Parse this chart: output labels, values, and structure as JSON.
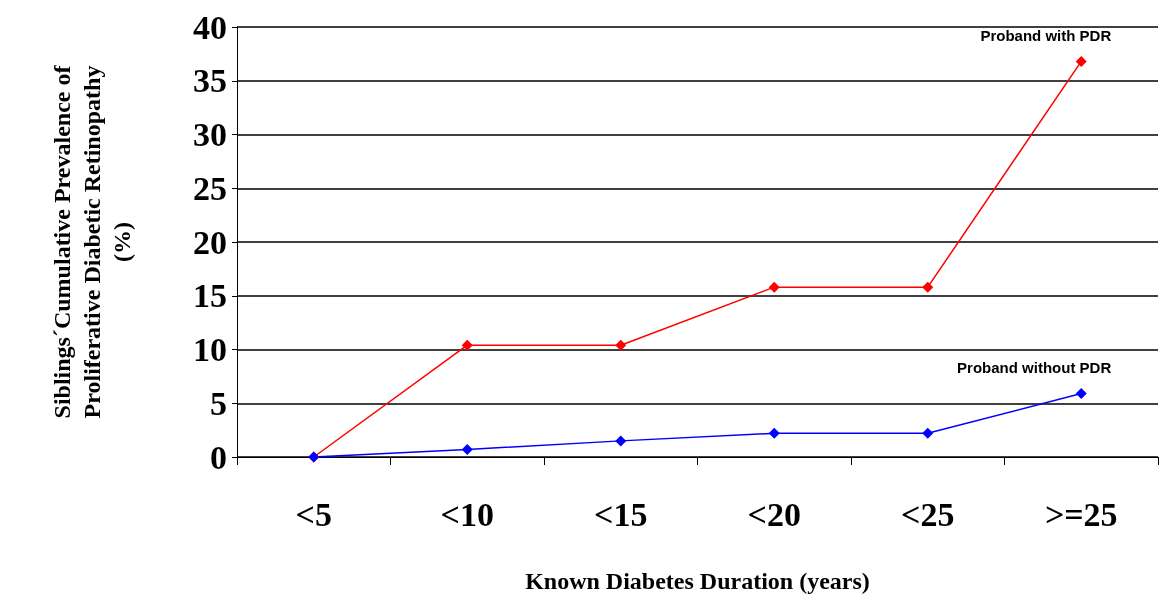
{
  "chart_data": {
    "type": "line",
    "xlabel": "Known Diabetes Duration (years)",
    "ylabel": "Siblings´Cumulative Prevalence of Proliferative Diabetic Retinopathy (%)",
    "categories": [
      "<5",
      "<10",
      "<15",
      "<20",
      "<25",
      ">=25"
    ],
    "series": [
      {
        "name": "Proband with PDR",
        "color": "#ff0000",
        "values": [
          0,
          10.4,
          10.4,
          15.8,
          15.8,
          36.8
        ]
      },
      {
        "name": "Proband without PDR",
        "color": "#0000ff",
        "values": [
          0,
          0.7,
          1.5,
          2.2,
          2.2,
          5.9
        ]
      }
    ],
    "ylim": [
      0,
      40
    ],
    "yticks": [
      0,
      5,
      10,
      15,
      20,
      25,
      30,
      35,
      40
    ],
    "grid": "y",
    "legend": false,
    "marker": "diamond",
    "line_style": "solid"
  }
}
